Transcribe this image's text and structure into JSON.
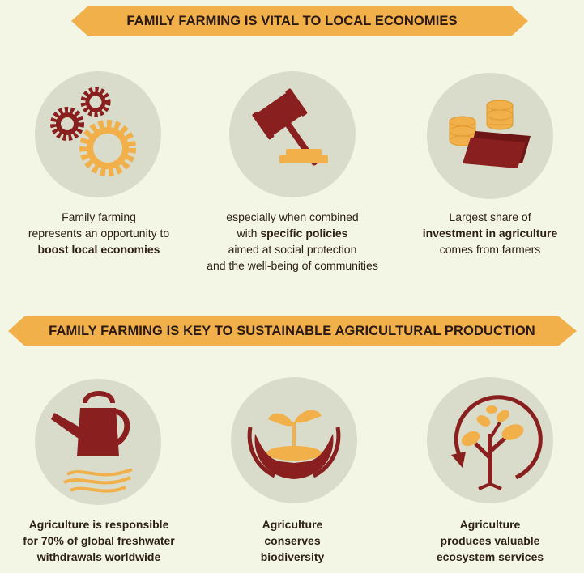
{
  "section1": {
    "banner": "FAMILY FARMING IS VITAL TO LOCAL ECONOMIES",
    "items": [
      {
        "icon": "gears-icon",
        "lines": [
          "Family farming",
          "represents an opportunity to"
        ],
        "bold": "boost local economies"
      },
      {
        "icon": "gavel-icon",
        "lines": [
          "especially when combined"
        ],
        "pre_bold": "with ",
        "bold": "specific policies",
        "after": [
          "aimed at social protection",
          "and the well-being of communities"
        ]
      },
      {
        "icon": "coins-icon",
        "lines": [
          "Largest share of"
        ],
        "bold": "investment in agriculture",
        "after": [
          "comes from farmers"
        ]
      }
    ]
  },
  "section2": {
    "banner": "FAMILY FARMING IS KEY TO SUSTAINABLE AGRICULTURAL PRODUCTION",
    "items": [
      {
        "icon": "watering-can-icon",
        "bold_lines": [
          "Agriculture is responsible",
          "for 70% of global freshwater",
          "withdrawals worldwide"
        ]
      },
      {
        "icon": "hands-seedling-icon",
        "bold_lines": [
          "Agriculture",
          "conserves",
          "biodiversity"
        ]
      },
      {
        "icon": "tree-cycle-icon",
        "bold_lines": [
          "Agriculture",
          "produces valuable",
          "ecosystem services"
        ]
      }
    ]
  },
  "colors": {
    "banner": "#f2b04a",
    "icon_dark": "#8a1f1f",
    "icon_light": "#f2b04a",
    "circle": "#d9dccb",
    "background": "#f3f6e4"
  }
}
